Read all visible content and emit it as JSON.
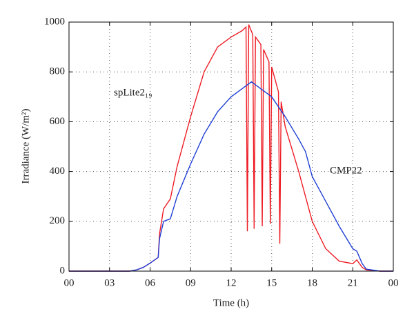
{
  "chart_data": {
    "type": "line",
    "xlabel": "Time (h)",
    "ylabel": "Irradiance (W/m²)",
    "xlim": [
      0,
      24
    ],
    "xticks": [
      {
        "value": 0,
        "label": "00"
      },
      {
        "value": 3,
        "label": "03"
      },
      {
        "value": 6,
        "label": "06"
      },
      {
        "value": 9,
        "label": "09"
      },
      12,
      15,
      18,
      21,
      {
        "value": 24,
        "label": "00"
      }
    ],
    "ylim": [
      0,
      1000
    ],
    "yticks": [
      0,
      200,
      400,
      600,
      800,
      1000
    ],
    "grid": true,
    "series": [
      {
        "name": "spLite2₁₉",
        "color": "#ee1c24",
        "x": [
          0,
          3,
          4.5,
          5,
          5.5,
          6,
          6.6,
          6.7,
          7,
          7.5,
          8,
          9,
          10,
          11,
          12,
          12.8,
          13.1,
          13.2,
          13.3,
          13.6,
          13.7,
          13.8,
          14.2,
          14.3,
          14.4,
          14.8,
          14.9,
          15.0,
          15.5,
          15.6,
          15.7,
          16,
          17,
          18,
          19,
          20,
          21,
          21.3,
          21.7,
          22,
          23,
          24
        ],
        "values": [
          0,
          0,
          0,
          5,
          15,
          32,
          55,
          150,
          250,
          290,
          420,
          620,
          800,
          900,
          940,
          965,
          980,
          160,
          990,
          950,
          170,
          940,
          910,
          180,
          890,
          840,
          190,
          820,
          720,
          110,
          680,
          580,
          400,
          200,
          90,
          40,
          30,
          45,
          15,
          5,
          0,
          0
        ]
      },
      {
        "name": "CMP22",
        "color": "#1f3fd6",
        "x": [
          0,
          4.5,
          5,
          5.5,
          6,
          6.6,
          6.7,
          7,
          7.5,
          8,
          9,
          10,
          11,
          12,
          13,
          13.5,
          14,
          15,
          16,
          17,
          17.5,
          18,
          19,
          20,
          21,
          21.3,
          21.7,
          22,
          23,
          24
        ],
        "values": [
          0,
          0,
          5,
          15,
          32,
          55,
          130,
          200,
          210,
          300,
          430,
          550,
          640,
          700,
          740,
          760,
          740,
          700,
          620,
          530,
          480,
          380,
          280,
          180,
          90,
          80,
          30,
          8,
          0,
          0
        ]
      }
    ]
  }
}
